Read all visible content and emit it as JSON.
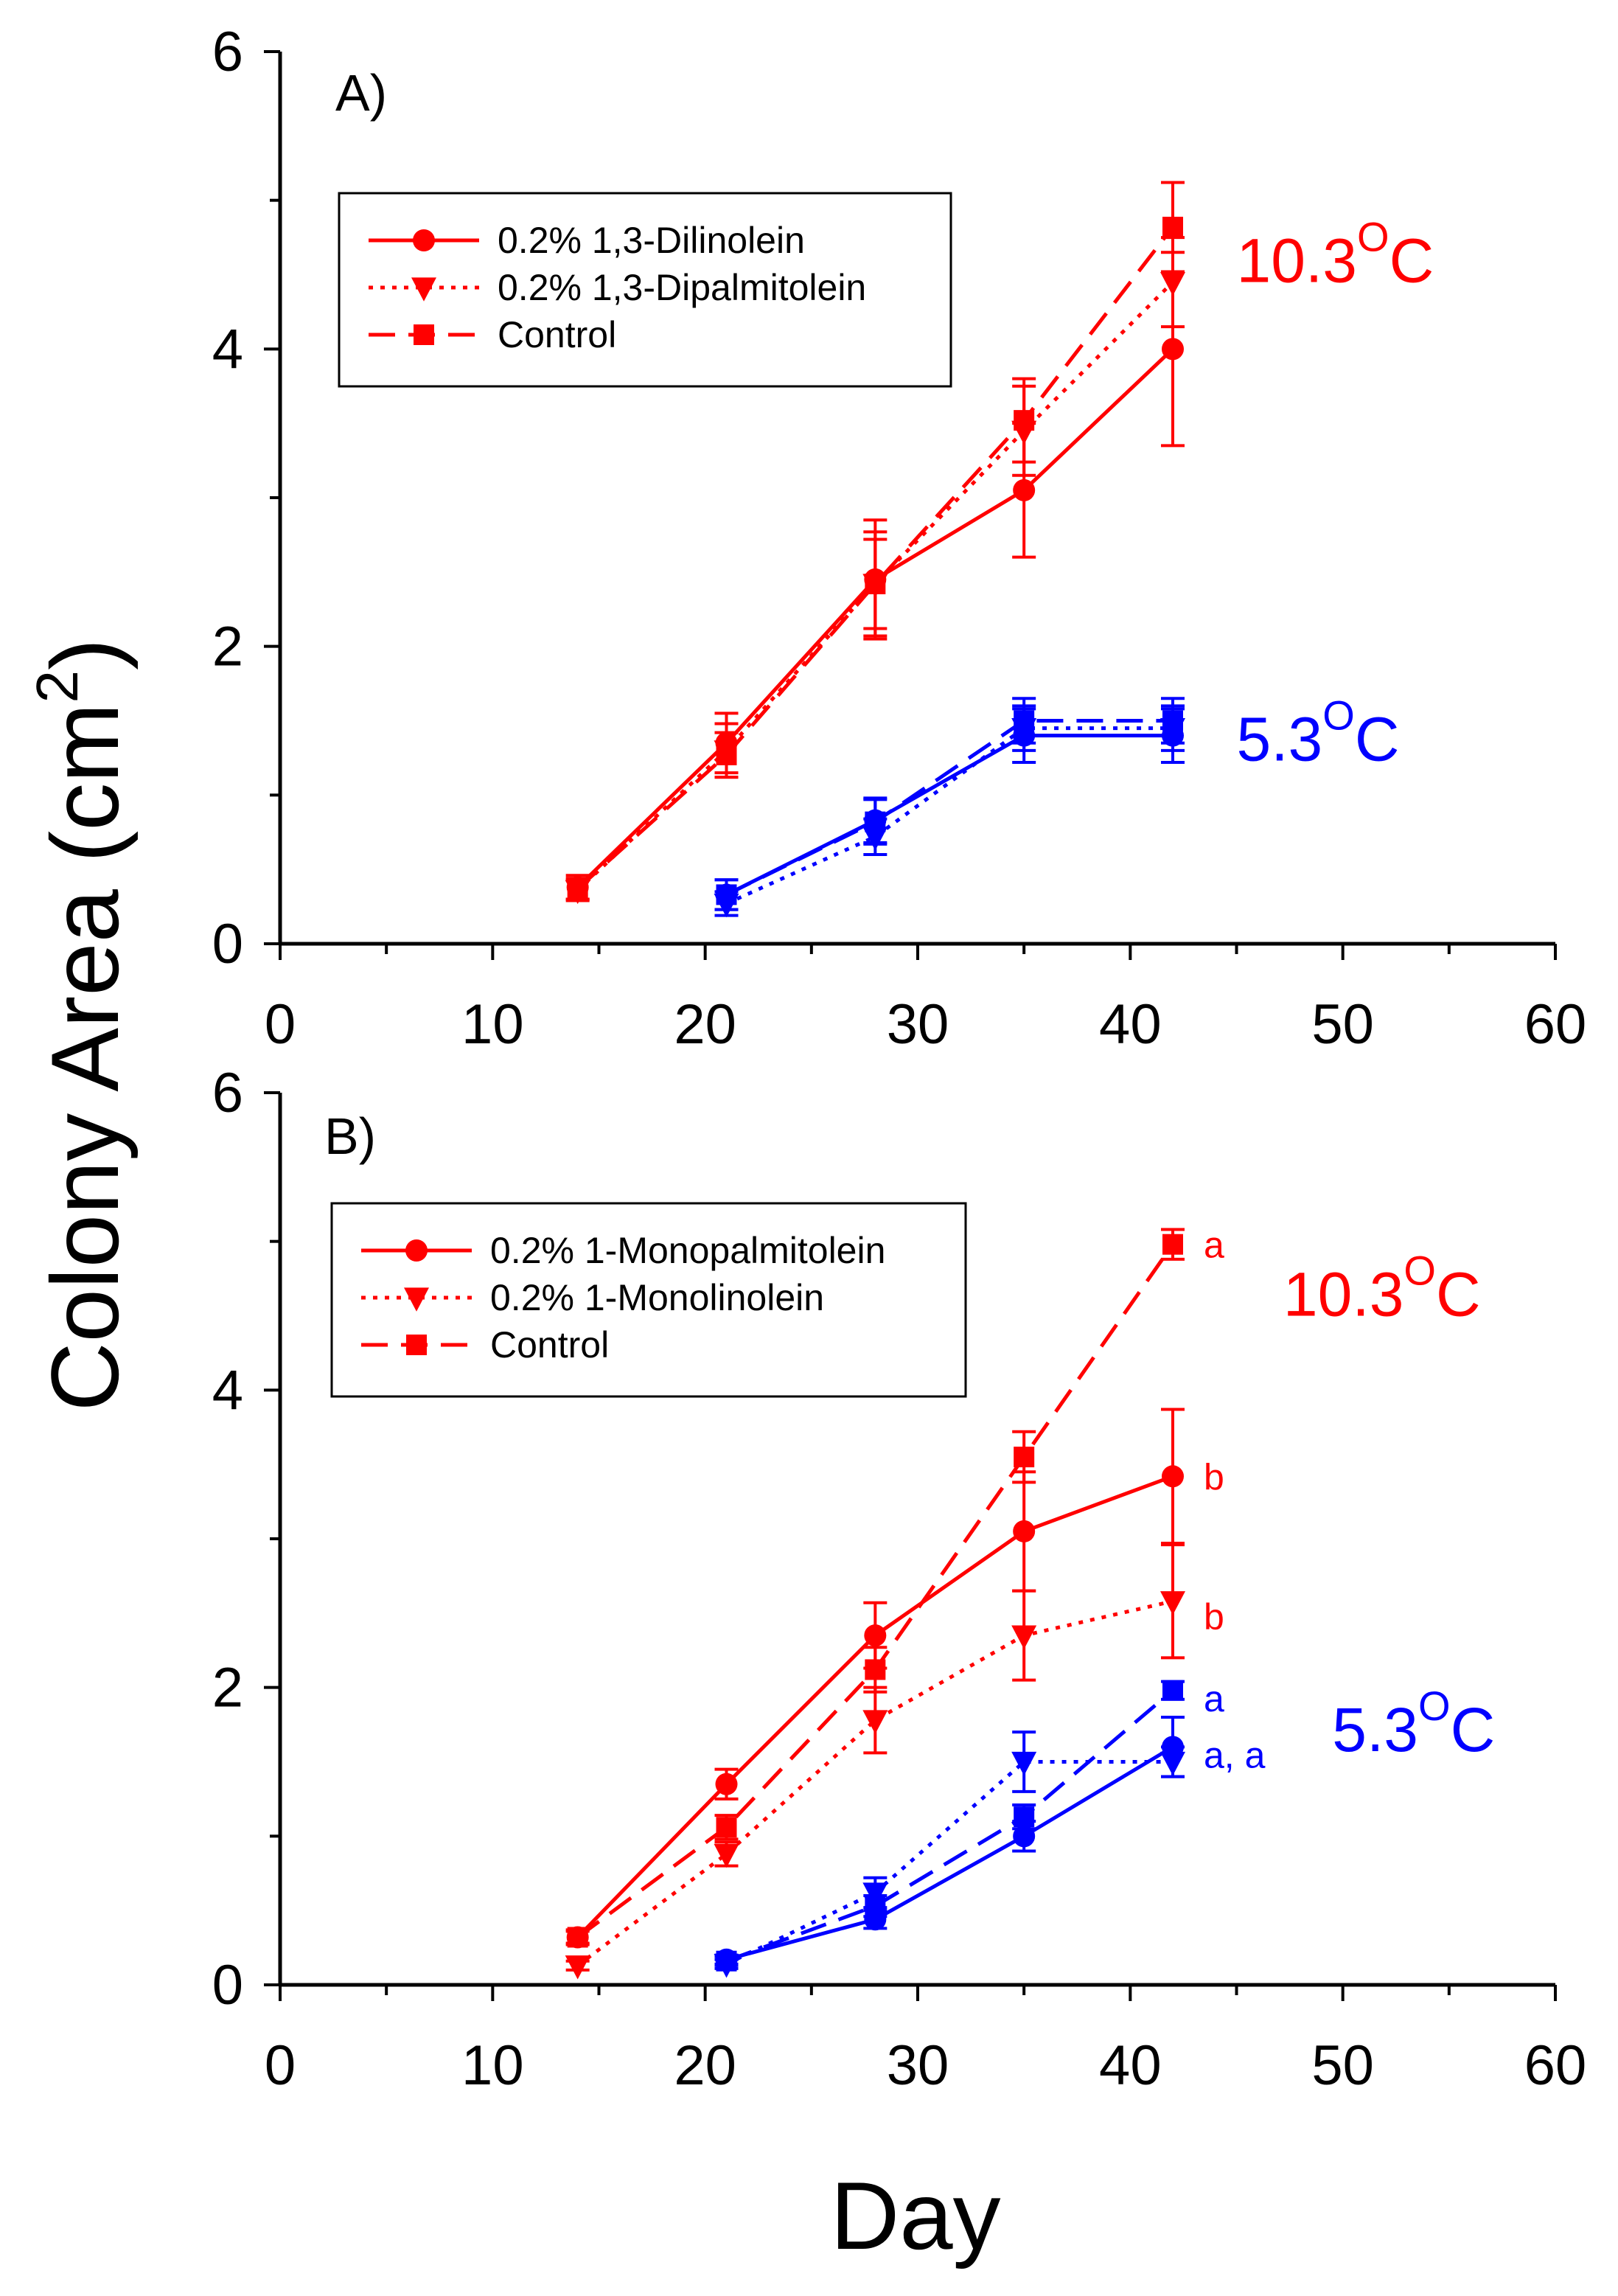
{
  "figure": {
    "ylabel": "Colony Area (cm",
    "ylabel_sup": "2",
    "ylabel_close": ")",
    "xlabel": "Day"
  },
  "colors": {
    "warm": "#ff0000",
    "cold": "#0000ff",
    "axis": "#000000"
  },
  "chart_data": [
    {
      "type": "line",
      "panel": "A)",
      "xlim": [
        0,
        60
      ],
      "ylim": [
        0,
        6
      ],
      "xticks": [
        0,
        10,
        20,
        30,
        40,
        50,
        60
      ],
      "yticks": [
        0,
        2,
        4,
        6
      ],
      "grid": false,
      "legend_placement": "upper-left",
      "legend": [
        {
          "label": "0.2% 1,3-Dilinolein",
          "style": "solid",
          "marker": "circle"
        },
        {
          "label": "0.2% 1,3-Dipalmitolein",
          "style": "dotted",
          "marker": "triangle-down"
        },
        {
          "label": "Control",
          "style": "dashed",
          "marker": "square"
        }
      ],
      "group_labels": [
        {
          "text": "10.3",
          "sup": "O",
          "unit": "C",
          "color": "#ff0000",
          "anchor": [
            45,
            4.6
          ]
        },
        {
          "text": "5.3",
          "sup": "O",
          "unit": "C",
          "color": "#0000ff",
          "anchor": [
            45,
            1.38
          ]
        }
      ],
      "series": [
        {
          "name": "0.2% 1,3-Dilinolein",
          "group": "10.3",
          "color": "#ff0000",
          "style": "solid",
          "marker": "circle",
          "x": [
            14,
            21,
            28,
            35,
            42
          ],
          "y": [
            0.38,
            1.35,
            2.45,
            3.05,
            4.0
          ],
          "err": [
            0.08,
            0.2,
            0.4,
            0.45,
            0.65
          ]
        },
        {
          "name": "0.2% 1,3-Dipalmitolein",
          "group": "10.3",
          "color": "#ff0000",
          "style": "dotted",
          "marker": "triangle-down",
          "x": [
            14,
            21,
            28,
            35,
            42
          ],
          "y": [
            0.36,
            1.3,
            2.42,
            3.45,
            4.45
          ],
          "err": [
            0.07,
            0.18,
            0.35,
            0.3,
            0.3
          ]
        },
        {
          "name": "Control",
          "group": "10.3",
          "color": "#ff0000",
          "style": "dashed",
          "marker": "square",
          "x": [
            14,
            21,
            28,
            35,
            42
          ],
          "y": [
            0.37,
            1.27,
            2.42,
            3.52,
            4.82
          ],
          "err": [
            0.07,
            0.15,
            0.3,
            0.28,
            0.3
          ]
        },
        {
          "name": "0.2% 1,3-Dilinolein",
          "group": "5.3",
          "color": "#0000ff",
          "style": "solid",
          "marker": "circle",
          "x": [
            21,
            28,
            35,
            42
          ],
          "y": [
            0.33,
            0.83,
            1.4,
            1.4
          ],
          "err": [
            0.1,
            0.15,
            0.18,
            0.18
          ]
        },
        {
          "name": "0.2% 1,3-Dipalmitolein",
          "group": "5.3",
          "color": "#0000ff",
          "style": "dotted",
          "marker": "triangle-down",
          "x": [
            21,
            28,
            35,
            42
          ],
          "y": [
            0.27,
            0.72,
            1.45,
            1.45
          ],
          "err": [
            0.08,
            0.12,
            0.15,
            0.15
          ]
        },
        {
          "name": "Control",
          "group": "5.3",
          "color": "#0000ff",
          "style": "dashed",
          "marker": "square",
          "x": [
            21,
            28,
            35,
            42
          ],
          "y": [
            0.33,
            0.82,
            1.5,
            1.5
          ],
          "err": [
            0.1,
            0.15,
            0.15,
            0.15
          ]
        }
      ],
      "annotations": []
    },
    {
      "type": "line",
      "panel": "B)",
      "xlim": [
        0,
        60
      ],
      "ylim": [
        0,
        6
      ],
      "xticks": [
        0,
        10,
        20,
        30,
        40,
        50,
        60
      ],
      "yticks": [
        0,
        2,
        4,
        6
      ],
      "grid": false,
      "legend_placement": "upper-left",
      "legend": [
        {
          "label": "0.2% 1-Monopalmitolein",
          "style": "solid",
          "marker": "circle"
        },
        {
          "label": "0.2% 1-Monolinolein",
          "style": "dotted",
          "marker": "triangle-down"
        },
        {
          "label": "Control",
          "style": "dashed",
          "marker": "square"
        }
      ],
      "group_labels": [
        {
          "text": "10.3",
          "sup": "O",
          "unit": "C",
          "color": "#ff0000",
          "anchor": [
            47.2,
            4.65
          ]
        },
        {
          "text": "5.3",
          "sup": "O",
          "unit": "C",
          "color": "#0000ff",
          "anchor": [
            49.5,
            1.72
          ]
        }
      ],
      "series": [
        {
          "name": "0.2% 1-Monopalmitolein",
          "group": "10.3",
          "color": "#ff0000",
          "style": "solid",
          "marker": "circle",
          "x": [
            14,
            21,
            28,
            35,
            42
          ],
          "y": [
            0.32,
            1.35,
            2.35,
            3.05,
            3.42
          ],
          "err": [
            0.05,
            0.1,
            0.22,
            0.4,
            0.45
          ]
        },
        {
          "name": "0.2% 1-Monolinolein",
          "group": "10.3",
          "color": "#ff0000",
          "style": "dotted",
          "marker": "triangle-down",
          "x": [
            14,
            21,
            28,
            35,
            42
          ],
          "y": [
            0.13,
            0.88,
            1.78,
            2.35,
            2.58
          ],
          "err": [
            0.03,
            0.08,
            0.22,
            0.3,
            0.38
          ]
        },
        {
          "name": "Control",
          "group": "10.3",
          "color": "#ff0000",
          "style": "dashed",
          "marker": "square",
          "x": [
            14,
            21,
            28,
            35,
            42
          ],
          "y": [
            0.32,
            1.06,
            2.12,
            3.55,
            4.98
          ],
          "err": [
            0.04,
            0.08,
            0.15,
            0.17,
            0.1
          ]
        },
        {
          "name": "0.2% 1-Monopalmitolein",
          "group": "5.3",
          "color": "#0000ff",
          "style": "solid",
          "marker": "circle",
          "x": [
            21,
            28,
            35,
            42
          ],
          "y": [
            0.17,
            0.44,
            1.0,
            1.6
          ],
          "err": [
            0.03,
            0.06,
            0.1,
            0.2
          ]
        },
        {
          "name": "0.2% 1-Monolinolein",
          "group": "5.3",
          "color": "#0000ff",
          "style": "dotted",
          "marker": "triangle-down",
          "x": [
            21,
            28,
            35,
            42
          ],
          "y": [
            0.14,
            0.62,
            1.5,
            1.5
          ],
          "err": [
            0.03,
            0.1,
            0.2,
            0.1
          ]
        },
        {
          "name": "Control",
          "group": "5.3",
          "color": "#0000ff",
          "style": "dashed",
          "marker": "square",
          "x": [
            21,
            28,
            35,
            42
          ],
          "y": [
            0.16,
            0.53,
            1.13,
            1.98
          ],
          "err": [
            0.03,
            0.07,
            0.08,
            0.06
          ]
        }
      ],
      "annotations": [
        {
          "text": "a",
          "color": "#ff0000",
          "x": 42,
          "y": 4.98
        },
        {
          "text": "b",
          "color": "#ff0000",
          "x": 42,
          "y": 3.42
        },
        {
          "text": "b",
          "color": "#ff0000",
          "x": 42,
          "y": 2.48
        },
        {
          "text": "a",
          "color": "#0000ff",
          "x": 42,
          "y": 1.93
        },
        {
          "text": "a, a",
          "color": "#0000ff",
          "x": 42,
          "y": 1.55
        }
      ]
    }
  ]
}
